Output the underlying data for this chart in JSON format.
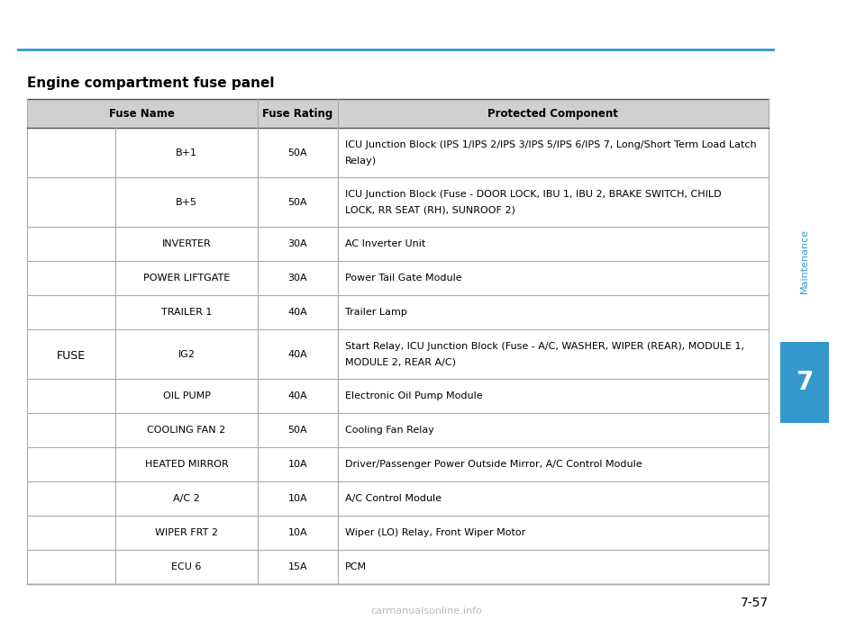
{
  "title": "Engine compartment fuse panel",
  "page_number": "7-57",
  "chapter": "7",
  "chapter_label": "Maintenance",
  "top_line_color": "#3399cc",
  "header": [
    "Fuse Name",
    "Fuse Rating",
    "Protected Component"
  ],
  "col1_main": "FUSE",
  "rows": [
    {
      "sub_name": "B+1",
      "rating": "50A",
      "component": "ICU Junction Block (IPS 1/IPS 2/IPS 3/IPS 5/IPS 6/IPS 7, Long/Short Term Load Latch\nRelay)"
    },
    {
      "sub_name": "B+5",
      "rating": "50A",
      "component": "ICU Junction Block (Fuse - DOOR LOCK, IBU 1, IBU 2, BRAKE SWITCH, CHILD\nLOCK, RR SEAT (RH), SUNROOF 2)"
    },
    {
      "sub_name": "INVERTER",
      "rating": "30A",
      "component": "AC Inverter Unit"
    },
    {
      "sub_name": "POWER LIFTGATE",
      "rating": "30A",
      "component": "Power Tail Gate Module"
    },
    {
      "sub_name": "TRAILER 1",
      "rating": "40A",
      "component": "Trailer Lamp"
    },
    {
      "sub_name": "IG2",
      "rating": "40A",
      "component": "Start Relay, ICU Junction Block (Fuse - A/C, WASHER, WIPER (REAR), MODULE 1,\nMODULE 2, REAR A/C)"
    },
    {
      "sub_name": "OIL PUMP",
      "rating": "40A",
      "component": "Electronic Oil Pump Module"
    },
    {
      "sub_name": "COOLING FAN 2",
      "rating": "50A",
      "component": "Cooling Fan Relay"
    },
    {
      "sub_name": "HEATED MIRROR",
      "rating": "10A",
      "component": "Driver/Passenger Power Outside Mirror, A/C Control Module"
    },
    {
      "sub_name": "A/C 2",
      "rating": "10A",
      "component": "A/C Control Module"
    },
    {
      "sub_name": "WIPER FRT 2",
      "rating": "10A",
      "component": "Wiper (LO) Relay, Front Wiper Motor"
    },
    {
      "sub_name": "ECU 6",
      "rating": "15A",
      "component": "PCM"
    }
  ],
  "bg_color": "#ffffff",
  "text_color": "#000000",
  "header_bg": "#d0d0d0",
  "line_color": "#aaaaaa",
  "sidebar_bg": "#3399cc",
  "sidebar_text": "#ffffff",
  "maintenance_color": "#3399cc"
}
